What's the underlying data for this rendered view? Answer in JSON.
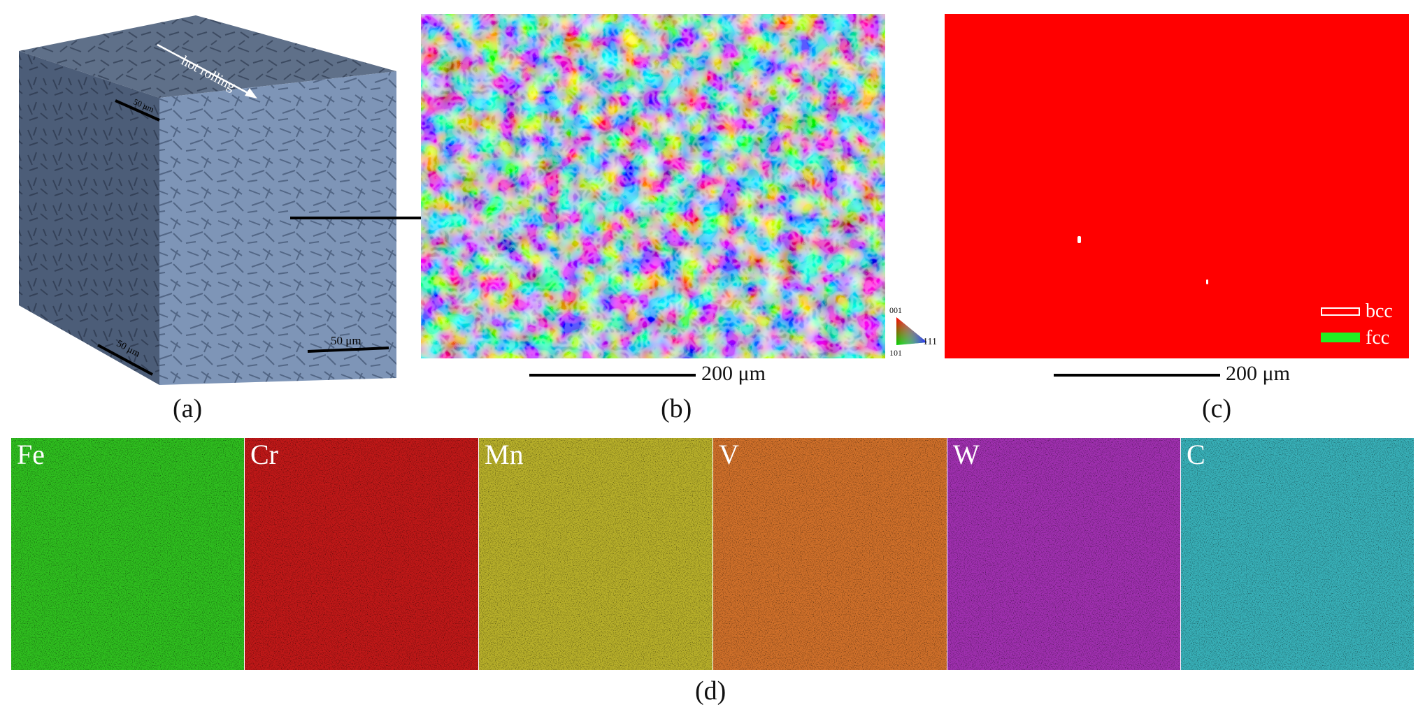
{
  "panel_a": {
    "label": "(a)",
    "direction_text": "hot rolling",
    "scale_top": "50 μm",
    "scale_left": "50 μm",
    "scale_front": "50 μm",
    "colors": {
      "top": "#5f7089",
      "left": "#4c5d78",
      "front": "#7e95b7"
    }
  },
  "panel_b": {
    "label": "(b)",
    "scale_text": "200 μm",
    "ipf_legend": {
      "top": "001",
      "bottom_left": "101",
      "right": "111"
    }
  },
  "panel_c": {
    "label": "(c)",
    "scale_text": "200 μm",
    "legend": [
      {
        "name": "bcc",
        "color": "#ff0000"
      },
      {
        "name": "fcc",
        "color": "#22ee22"
      }
    ],
    "fill_color": "#ff0000"
  },
  "panel_d": {
    "label": "(d)",
    "maps": [
      {
        "element": "Fe",
        "color": "#2fbf1f"
      },
      {
        "element": "Cr",
        "color": "#c01818"
      },
      {
        "element": "Mn",
        "color": "#b8b02a"
      },
      {
        "element": "V",
        "color": "#d0702a"
      },
      {
        "element": "W",
        "color": "#a030b0"
      },
      {
        "element": "C",
        "color": "#38b0b8"
      }
    ]
  }
}
